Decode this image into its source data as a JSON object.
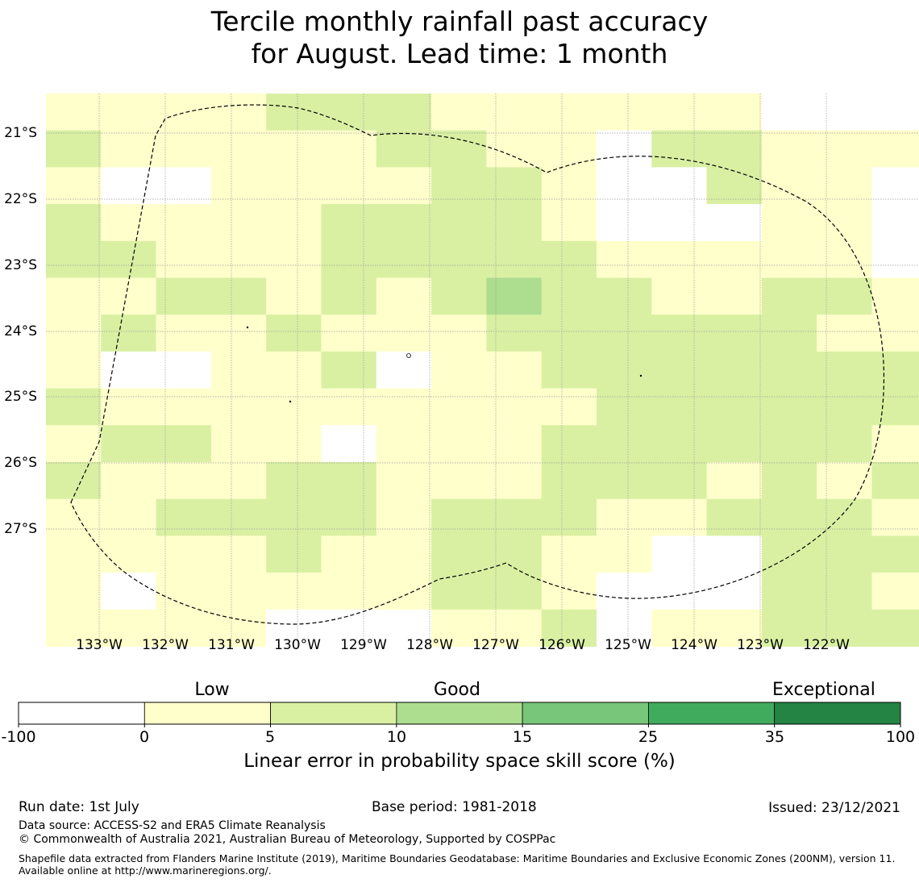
{
  "title": {
    "line1": "Tercile monthly rainfall past accuracy",
    "line2": "for August. Lead time: 1 month"
  },
  "colors": {
    "c0": "#ffffff",
    "c1": "#ffffcc",
    "c2": "#d9f0a3",
    "c3": "#addd8e",
    "c4": "#78c679",
    "c5": "#41ab5d",
    "c6": "#238443",
    "eez_line": "#000000",
    "grid": "#999999"
  },
  "map": {
    "lat_labels": [
      "21°S",
      "22°S",
      "23°S",
      "24°S",
      "25°S",
      "26°S",
      "27°S"
    ],
    "lon_labels": [
      "133°W",
      "132°W",
      "131°W",
      "130°W",
      "129°W",
      "128°W",
      "127°W",
      "126°W",
      "125°W",
      "124°W",
      "123°W",
      "122°W"
    ],
    "grid_rows": [
      "1111222111111000",
      "2111112211022111",
      "1001111221002110",
      "2111122221000110",
      "2211122222111110",
      "1122121232211221",
      "1211211122222211",
      "1001120112222222",
      "2111111111222222",
      "1221101112222221",
      "2111221112221212",
      "1122221222112221",
      "1111211221100222",
      "1011111221000221",
      "1111000112011222"
    ],
    "boundary_style": "dashed"
  },
  "legend": {
    "category_labels": [
      "Low",
      "Good",
      "Exceptional"
    ],
    "tick_labels": [
      "-100",
      "0",
      "5",
      "10",
      "15",
      "25",
      "35",
      "100"
    ],
    "colorbar_title": "Linear error in probability space skill score (%)"
  },
  "footer": {
    "run_date": "Run date: 1st July",
    "base_period": "Base period: 1981-2018",
    "issued": "Issued: 23/12/2021",
    "data_source": "Data source: ACCESS-S2 and ERA5 Climate Reanalysis",
    "copyright": "© Commonwealth of Australia 2021, Australian Bureau of Meteorology, Supported by COSPPac",
    "shapefile_note": "Shapefile data extracted from Flanders Marine Institute (2019), Maritime Boundaries Geodatabase: Maritime Boundaries and Exclusive Economic Zones (200NM), version 11. Available online at http://www.marineregions.org/."
  }
}
